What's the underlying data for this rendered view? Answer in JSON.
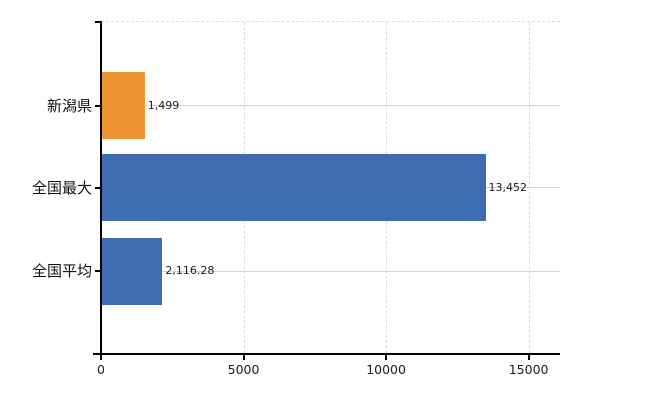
{
  "chart_data": {
    "type": "bar",
    "orientation": "horizontal",
    "title": "",
    "categories": [
      "新潟県",
      "全国最大",
      "全国平均"
    ],
    "values": [
      1499,
      13452,
      2116.28
    ],
    "value_labels": [
      "1,499",
      "13,452",
      "2,116.28"
    ],
    "bar_colors": [
      "#ee9434",
      "#3c6db2",
      "#3c6db2"
    ],
    "x_ticks": [
      0,
      5000,
      10000,
      15000
    ],
    "x_tick_labels": [
      "0",
      "5000",
      "10000",
      "15000"
    ],
    "xlim": [
      0,
      16100
    ],
    "grid": true,
    "legend": false,
    "colors": {
      "highlight_bar": "#ee9434",
      "default_bar": "#3c6db2",
      "gridline_h": "#ccd5cc",
      "gridline_v": "#d7ddd7",
      "axis": "#000000",
      "background": "#ffffff"
    }
  }
}
